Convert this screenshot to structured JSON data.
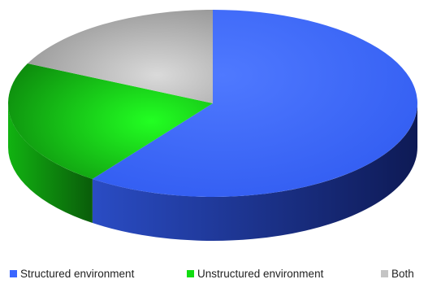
{
  "chart_data": {
    "type": "pie",
    "title": "",
    "labels": [
      "Structured environment",
      "Unstructured environment",
      "Both"
    ],
    "values": [
      60,
      22,
      18
    ],
    "legend_position": "bottom",
    "three_d": true
  },
  "colors": {
    "Structured environment": "#3a66ff",
    "Unstructured environment": "#11dd11",
    "Both": "#c4c4c4"
  }
}
